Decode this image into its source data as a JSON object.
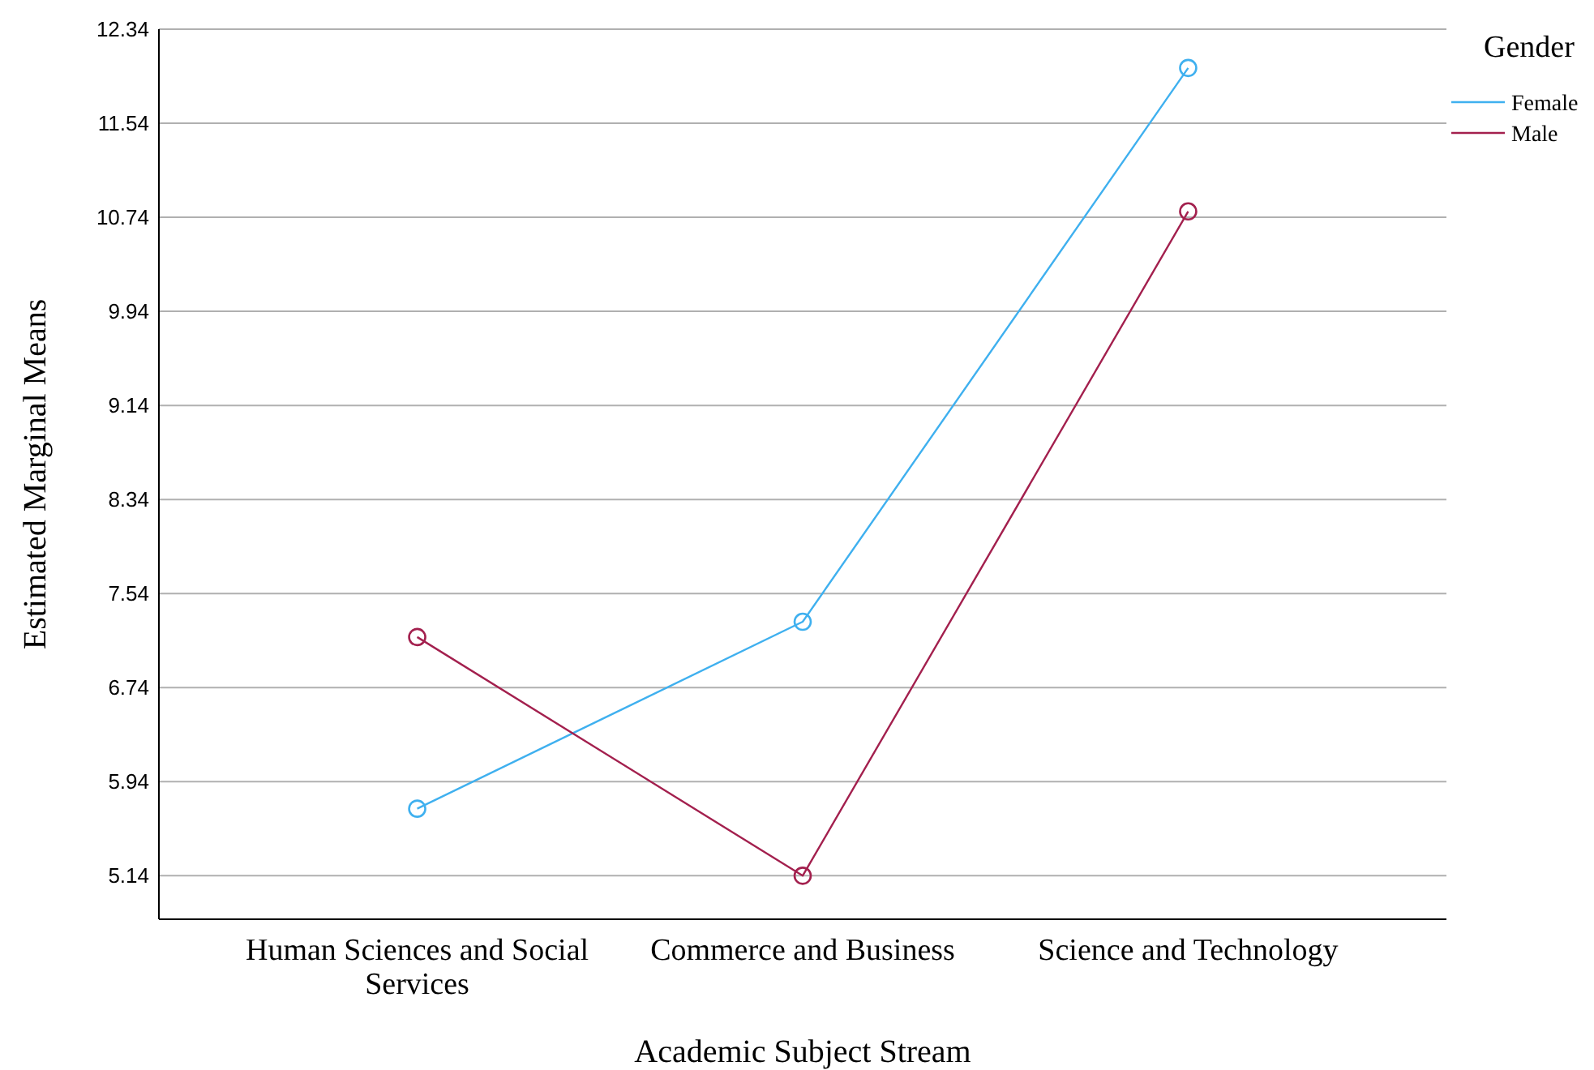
{
  "chart_data": {
    "type": "line",
    "xlabel": "Academic Subject Stream",
    "ylabel": "Estimated Marginal Means",
    "legend_title": "Gender",
    "categories": [
      "Human Sciences and Social Services",
      "Commerce and Business",
      "Science and Technology"
    ],
    "series": [
      {
        "name": "Female",
        "color": "#3fb0ef",
        "values": [
          5.71,
          7.3,
          12.01
        ]
      },
      {
        "name": "Male",
        "color": "#a3204e",
        "values": [
          7.17,
          5.14,
          10.79
        ]
      }
    ],
    "ylim": [
      4.77,
      12.34
    ],
    "yticks": [
      5.14,
      5.94,
      6.74,
      7.54,
      8.34,
      9.14,
      9.94,
      10.74,
      11.54,
      12.34
    ],
    "grid": "y",
    "legend": "top right",
    "marker": "circle",
    "line_style": "solid"
  }
}
